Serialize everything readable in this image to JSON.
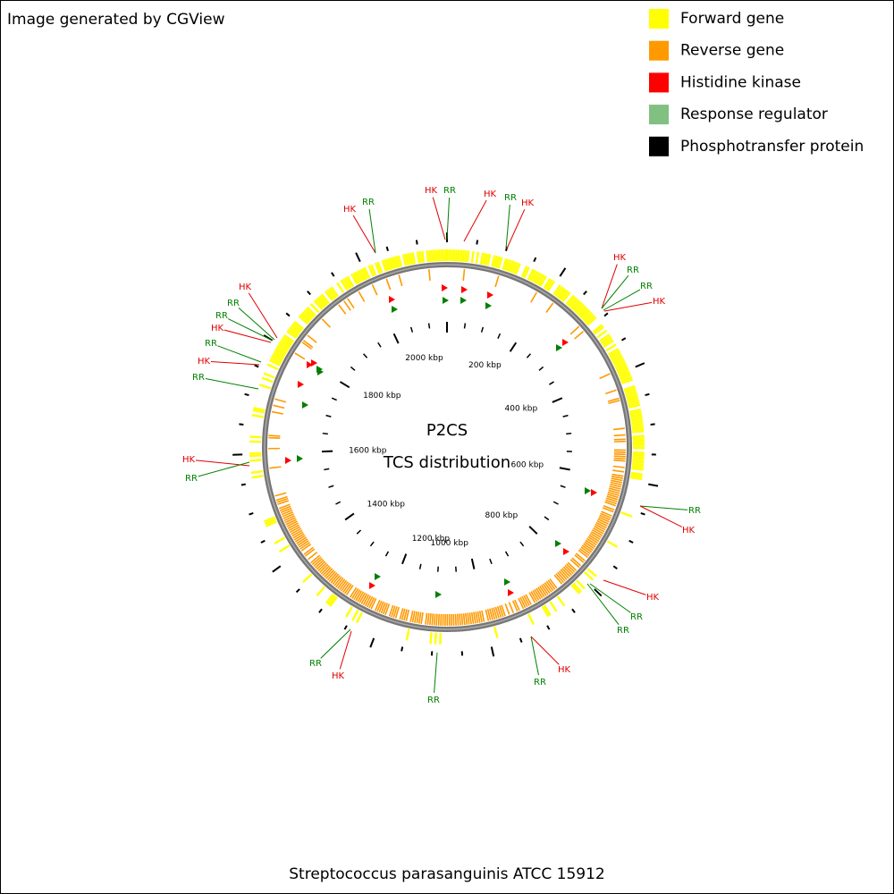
{
  "header": {
    "credit": "Image generated by CGView"
  },
  "legend": [
    {
      "label": "Forward gene",
      "color": "#ffff00"
    },
    {
      "label": "Reverse gene",
      "color": "#ff9900"
    },
    {
      "label": "Histidine kinase",
      "color": "#ff0000"
    },
    {
      "label": "Response regulator",
      "color": "#80c080"
    },
    {
      "label": "Phosphotransfer protein",
      "color": "#000000"
    }
  ],
  "map": {
    "title": "P2CS",
    "subtitle": "TCS distribution",
    "ticks": [
      "200 kbp",
      "400 kbp",
      "600 kbp",
      "800 kbp",
      "1000 kbp",
      "1200 kbp",
      "1400 kbp",
      "1600 kbp",
      "1800 kbp",
      "2000 kbp"
    ],
    "features": [
      "HK",
      "RR",
      "HK",
      "RR",
      "HK",
      "HK",
      "RR",
      "HK",
      "RR",
      "RR",
      "HK",
      "HK",
      "RR",
      "RR",
      "HK",
      "RR",
      "HK",
      "RR",
      "HK",
      "RR",
      "RR",
      "HK",
      "HK",
      "RR",
      "RR",
      "HK",
      "RR",
      "RR",
      "RR",
      "HK"
    ]
  },
  "footer": {
    "organism": "Streptococcus parasanguinis ATCC 15912"
  }
}
